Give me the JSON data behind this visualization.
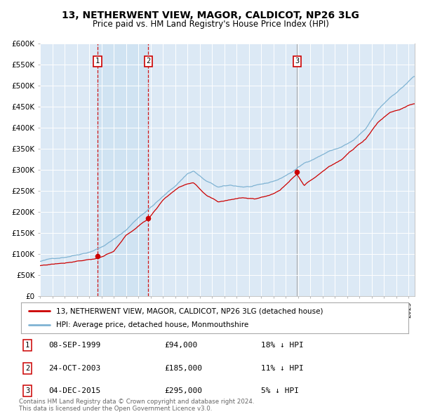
{
  "title": "13, NETHERWENT VIEW, MAGOR, CALDICOT, NP26 3LG",
  "subtitle": "Price paid vs. HM Land Registry's House Price Index (HPI)",
  "legend_label_red": "13, NETHERWENT VIEW, MAGOR, CALDICOT, NP26 3LG (detached house)",
  "legend_label_blue": "HPI: Average price, detached house, Monmouthshire",
  "sales": [
    {
      "label": "1",
      "date": "08-SEP-1999",
      "date_num": 1999.69,
      "price": 94000,
      "pct": "18%",
      "dir": "↓"
    },
    {
      "label": "2",
      "date": "24-OCT-2003",
      "date_num": 2003.82,
      "price": 185000,
      "pct": "11%",
      "dir": "↓"
    },
    {
      "label": "3",
      "date": "04-DEC-2015",
      "date_num": 2015.92,
      "price": 295000,
      "pct": "5%",
      "dir": "↓"
    }
  ],
  "footnote1": "Contains HM Land Registry data © Crown copyright and database right 2024.",
  "footnote2": "This data is licensed under the Open Government Licence v3.0.",
  "xmin": 1995.0,
  "xmax": 2025.5,
  "ymin": 0,
  "ymax": 600000,
  "yticks": [
    0,
    50000,
    100000,
    150000,
    200000,
    250000,
    300000,
    350000,
    400000,
    450000,
    500000,
    550000,
    600000
  ],
  "background_color": "#ffffff",
  "plot_bg_color": "#dce9f5",
  "grid_color": "#ffffff",
  "red_line_color": "#cc0000",
  "blue_line_color": "#7fb3d3",
  "vline_color_red": "#cc0000",
  "vline_color_gray": "#aaaaaa",
  "sale_marker_color": "#cc0000",
  "box_edge_color": "#cc0000",
  "sale_box_fill": "#ffffff",
  "hpi_scale_years": [
    1995.0,
    1996.0,
    1997.0,
    1998.0,
    1999.0,
    2000.0,
    2001.0,
    2002.0,
    2003.0,
    2004.0,
    2005.0,
    2006.0,
    2007.0,
    2007.5,
    2008.5,
    2009.5,
    2010.5,
    2011.5,
    2012.5,
    2013.5,
    2014.5,
    2015.5,
    2016.5,
    2017.5,
    2018.5,
    2019.5,
    2020.5,
    2021.5,
    2022.5,
    2023.5,
    2024.5,
    2025.4
  ],
  "hpi_scale_vals": [
    82000,
    88000,
    93000,
    100000,
    108000,
    120000,
    138000,
    160000,
    190000,
    215000,
    240000,
    265000,
    295000,
    302000,
    278000,
    262000,
    265000,
    262000,
    263000,
    268000,
    278000,
    295000,
    315000,
    330000,
    345000,
    355000,
    370000,
    395000,
    440000,
    470000,
    495000,
    520000
  ],
  "red_scale_years": [
    1995.0,
    1996.0,
    1997.0,
    1998.0,
    1999.69,
    2001.0,
    2002.0,
    2003.82,
    2005.0,
    2006.0,
    2007.0,
    2007.5,
    2008.5,
    2009.5,
    2010.5,
    2011.5,
    2012.5,
    2013.5,
    2014.5,
    2015.92,
    2016.5,
    2017.5,
    2018.5,
    2019.5,
    2020.5,
    2021.5,
    2022.5,
    2023.5,
    2024.5,
    2025.4
  ],
  "red_scale_vals": [
    72000,
    76000,
    80000,
    86000,
    94000,
    108000,
    145000,
    185000,
    230000,
    255000,
    270000,
    272000,
    240000,
    222000,
    228000,
    235000,
    232000,
    240000,
    252000,
    295000,
    268000,
    290000,
    315000,
    330000,
    355000,
    380000,
    420000,
    445000,
    455000,
    465000
  ]
}
